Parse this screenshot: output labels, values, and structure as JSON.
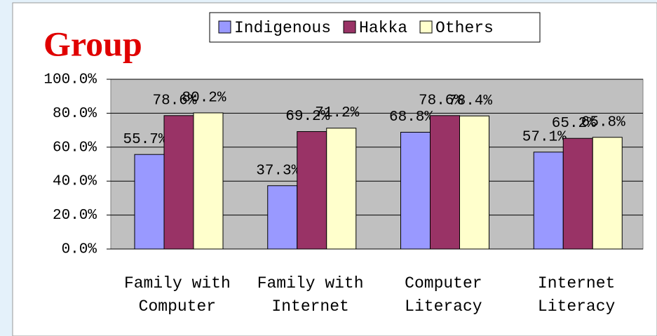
{
  "chart_data": {
    "type": "bar",
    "title": "Group",
    "categories": [
      "Family with Computer",
      "Family with Internet",
      "Computer Literacy",
      "Internet Literacy"
    ],
    "series": [
      {
        "name": "Indigenous",
        "color": "#9999ff",
        "values": [
          55.7,
          37.3,
          68.8,
          57.1
        ],
        "value_labels": [
          "55.7%",
          "37.3%",
          "68.8%",
          "57.1%"
        ]
      },
      {
        "name": "Hakka",
        "color": "#993366",
        "values": [
          78.6,
          69.2,
          78.6,
          65.2
        ],
        "value_labels": [
          "78.6%",
          "69.2%",
          "78.6%",
          "65.2%"
        ]
      },
      {
        "name": "Others",
        "color": "#ffffcc",
        "values": [
          80.2,
          71.2,
          78.4,
          65.8
        ],
        "value_labels": [
          "80.2%",
          "71.2%",
          "78.4%",
          "65.8%"
        ]
      }
    ],
    "ylim": [
      0,
      100
    ],
    "yticks": [
      {
        "value": 0,
        "label": "0.0%"
      },
      {
        "value": 20,
        "label": "20.0%"
      },
      {
        "value": 40,
        "label": "40.0%"
      },
      {
        "value": 60,
        "label": "60.0%"
      },
      {
        "value": 80,
        "label": "80.0%"
      },
      {
        "value": 100,
        "label": "100.0%"
      }
    ],
    "grid": true,
    "legend": "top"
  }
}
